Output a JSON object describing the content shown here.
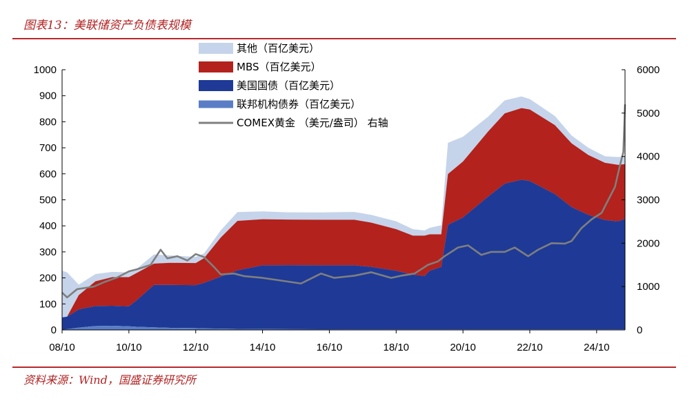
{
  "header": {
    "title": "图表13：美联储资产负债表规模"
  },
  "footer": {
    "source": "资料来源：Wind，国盛证券研究所"
  },
  "colors": {
    "other": "#c5d4ea",
    "mbs": "#b3221c",
    "treasury": "#1e3a96",
    "agency": "#5a7ec6",
    "gold": "#7f7f7f",
    "accent": "#b8262b"
  },
  "chart_data": {
    "type": "area",
    "title": "美联储资产负债表规模",
    "x_tick_labels": [
      "08/10",
      "10/10",
      "12/10",
      "14/10",
      "16/10",
      "18/10",
      "20/10",
      "22/10",
      "24/10"
    ],
    "x_ticks": [
      2008.75,
      2010.75,
      2012.75,
      2014.75,
      2016.75,
      2018.75,
      2020.75,
      2022.75,
      2024.75
    ],
    "xlim": [
      2008.75,
      2025.6
    ],
    "left_axis": {
      "ylim": [
        0,
        1000
      ],
      "ticks": [
        "0",
        "100",
        "200",
        "300",
        "400",
        "500",
        "600",
        "700",
        "800",
        "900",
        "1000"
      ]
    },
    "right_axis": {
      "ylim": [
        0,
        6000
      ],
      "ticks": [
        "0",
        "1000",
        "2000",
        "3000",
        "4000",
        "5000",
        "6000"
      ],
      "label": "右轴"
    },
    "legend": [
      {
        "name": "其他（百亿美元）",
        "kind": "area",
        "color": "#c5d4ea"
      },
      {
        "name": "MBS（百亿美元）",
        "kind": "area",
        "color": "#b3221c"
      },
      {
        "name": "美国国债（百亿美元）",
        "kind": "area",
        "color": "#1e3a96"
      },
      {
        "name": "联邦机构债券（百亿美元）",
        "kind": "area",
        "color": "#5a7ec6"
      },
      {
        "name": "COMEX黄金 （美元/盎司） 右轴",
        "kind": "line",
        "color": "#7f7f7f"
      }
    ],
    "x": [
      2008.75,
      2008.9,
      2009.25,
      2009.75,
      2010.25,
      2010.75,
      2011.0,
      2011.5,
      2012.0,
      2012.75,
      2013.0,
      2013.5,
      2014.0,
      2014.75,
      2015.5,
      2016.5,
      2017.5,
      2018.0,
      2018.75,
      2019.25,
      2019.6,
      2019.75,
      2020.1,
      2020.3,
      2020.75,
      2021.5,
      2022.0,
      2022.5,
      2022.75,
      2023.5,
      2024.0,
      2024.5,
      2025.0,
      2025.4,
      2025.6
    ],
    "series": [
      {
        "name": "联邦机构债券",
        "unit": "百亿美元",
        "values": [
          0,
          3,
          9,
          15,
          16,
          14,
          12,
          10,
          8,
          7,
          6,
          5,
          4,
          3.5,
          3,
          2.5,
          2.4,
          2.4,
          2.4,
          2.4,
          2.4,
          2.4,
          2.3,
          2.3,
          2.3,
          2.3,
          2.3,
          2.3,
          2.3,
          2.3,
          2.3,
          2.3,
          2.3,
          2.3,
          2.3
        ]
      },
      {
        "name": "美国国债",
        "unit": "百亿美元",
        "values": [
          48,
          48,
          70,
          77,
          77,
          77,
          104,
          163,
          165,
          165,
          175,
          200,
          225,
          245,
          246,
          246,
          246,
          240,
          225,
          210,
          205,
          225,
          240,
          402,
          430,
          510,
          560,
          575,
          570,
          520,
          470,
          440,
          420,
          415,
          425
        ]
      },
      {
        "name": "MBS",
        "unit": "百亿美元",
        "values": [
          0,
          0,
          55,
          95,
          110,
          112,
          104,
          82,
          85,
          85,
          95,
          150,
          190,
          177,
          175,
          175,
          175,
          170,
          160,
          150,
          155,
          140,
          125,
          195,
          215,
          250,
          270,
          275,
          275,
          265,
          245,
          230,
          220,
          217,
          210
        ]
      },
      {
        "name": "其他",
        "unit": "百亿美元",
        "values": [
          180,
          170,
          40,
          28,
          20,
          18,
          17,
          35,
          28,
          24,
          18,
          28,
          34,
          30,
          28,
          28,
          30,
          30,
          30,
          25,
          20,
          25,
          35,
          120,
          95,
          57,
          50,
          45,
          40,
          35,
          30,
          28,
          25,
          30,
          30
        ]
      },
      {
        "name": "COMEX黄金",
        "unit": "美元/盎司",
        "axis": "right",
        "x": [
          2008.75,
          2008.9,
          2009.2,
          2009.7,
          2010.0,
          2010.4,
          2010.75,
          2011.0,
          2011.4,
          2011.7,
          2011.9,
          2012.2,
          2012.5,
          2012.75,
          2013.0,
          2013.3,
          2013.5,
          2013.9,
          2014.2,
          2014.75,
          2015.2,
          2015.9,
          2016.5,
          2016.9,
          2017.5,
          2018.0,
          2018.6,
          2018.9,
          2019.3,
          2019.5,
          2019.7,
          2020.0,
          2020.2,
          2020.6,
          2020.9,
          2021.3,
          2021.6,
          2022.0,
          2022.3,
          2022.7,
          2023.0,
          2023.4,
          2023.8,
          2024.0,
          2024.3,
          2024.6,
          2024.9,
          2025.1,
          2025.3,
          2025.45,
          2025.55,
          2025.6
        ],
        "values": [
          860,
          750,
          940,
          1000,
          1100,
          1210,
          1350,
          1400,
          1500,
          1850,
          1650,
          1700,
          1600,
          1750,
          1680,
          1450,
          1280,
          1300,
          1240,
          1200,
          1150,
          1070,
          1300,
          1200,
          1250,
          1330,
          1200,
          1250,
          1300,
          1400,
          1500,
          1580,
          1700,
          1900,
          1950,
          1730,
          1800,
          1800,
          1900,
          1700,
          1850,
          2000,
          1990,
          2050,
          2350,
          2550,
          2700,
          3000,
          3300,
          3800,
          4100,
          5200
        ]
      }
    ]
  }
}
